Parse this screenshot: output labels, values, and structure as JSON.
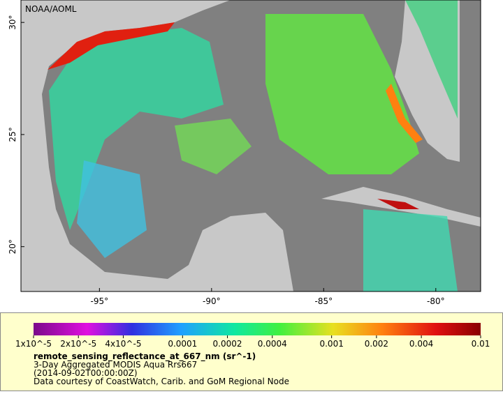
{
  "map": {
    "label": "NOAA/AOML",
    "xlim": [
      -98.5,
      -78
    ],
    "ylim": [
      18,
      31
    ],
    "xticks": [
      {
        "value": -95,
        "label": "-95°"
      },
      {
        "value": -90,
        "label": "-90°"
      },
      {
        "value": -85,
        "label": "-85°"
      },
      {
        "value": -80,
        "label": "-80°"
      }
    ],
    "yticks": [
      {
        "value": 20,
        "label": "20°"
      },
      {
        "value": 25,
        "label": "25°"
      },
      {
        "value": 30,
        "label": "30°"
      }
    ]
  },
  "colorbar": {
    "scale": "log",
    "lim": [
      1e-05,
      0.01
    ],
    "ticks": [
      {
        "value": 1e-05,
        "label": "1x10^-5"
      },
      {
        "value": 2e-05,
        "label": "2x10^-5"
      },
      {
        "value": 4e-05,
        "label": "4x10^-5"
      },
      0.0001,
      0.0002,
      0.0004,
      0.001,
      0.002,
      0.004,
      0.01
    ]
  },
  "legend": {
    "variable": "remote_sensing_reflectance_at_667_nm (sr^-1)",
    "lines": [
      "3-Day Aggregated MODIS Aqua Rrs667",
      "(2014-09-02T00:00:00Z)",
      "Data courtesy of CoastWatch, Carib. and GoM Regional Node"
    ]
  }
}
